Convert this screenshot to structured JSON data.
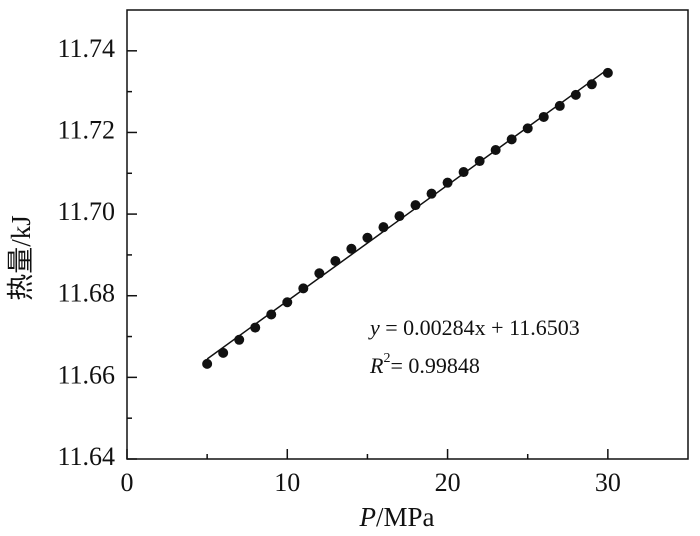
{
  "chart_data": {
    "type": "scatter",
    "xlabel": {
      "var": "P",
      "text": "/MPa"
    },
    "ylabel": "热量/kJ",
    "xlim": [
      0,
      35
    ],
    "ylim": [
      11.64,
      11.75
    ],
    "xticks": [
      0,
      10,
      20,
      30
    ],
    "yticks": [
      11.64,
      11.66,
      11.68,
      {
        "value": 11.7,
        "label": "11.70"
      },
      11.72,
      11.74
    ],
    "xminorticks": [
      5,
      15,
      25
    ],
    "yminorticks": [
      11.65,
      11.67,
      11.69,
      11.71,
      11.73
    ],
    "points": {
      "color": "#111111",
      "x": [
        5,
        6,
        7,
        8,
        9,
        10,
        11,
        12,
        13,
        14,
        15,
        16,
        17,
        18,
        19,
        20,
        21,
        22,
        23,
        24,
        25,
        26,
        27,
        28,
        29,
        30
      ],
      "values": [
        11.6633,
        11.666,
        11.6692,
        11.6722,
        11.6754,
        11.6784,
        11.6818,
        11.6855,
        11.6885,
        11.6915,
        11.6942,
        11.6968,
        11.6995,
        11.7022,
        11.705,
        11.7077,
        11.7103,
        11.713,
        11.7157,
        11.7183,
        11.721,
        11.7238,
        11.7265,
        11.7292,
        11.7318,
        11.7346
      ]
    },
    "fit_line": {
      "color": "#111111",
      "x": [
        5,
        30
      ],
      "values": [
        11.6645,
        11.7355
      ]
    },
    "equation": {
      "var": "y",
      "text": " = 0.00284x + 11.6503"
    },
    "r2": {
      "var": "R",
      "sup": "2",
      "text": "= 0.99848"
    }
  }
}
